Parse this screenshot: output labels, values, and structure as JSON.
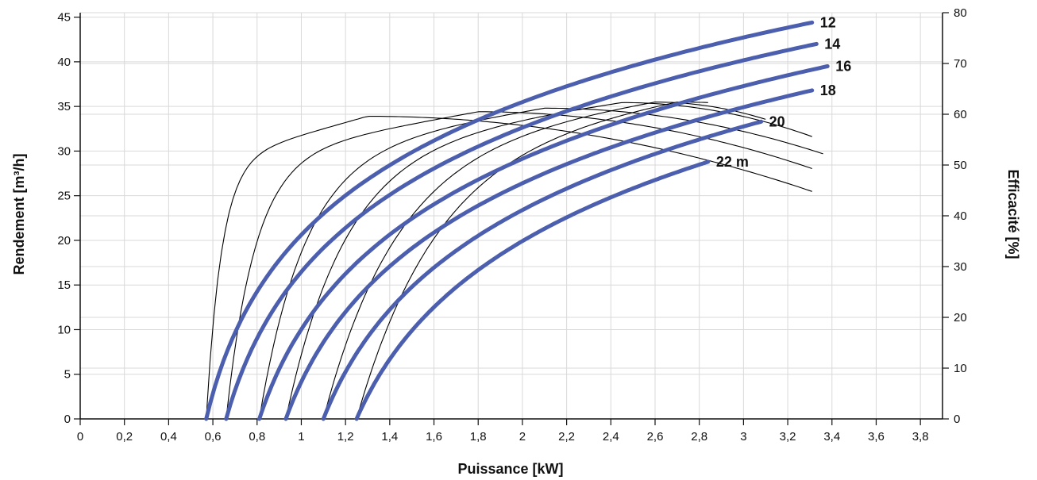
{
  "chart_data": {
    "type": "line",
    "title": "",
    "xlabel": "Puissance [kW]",
    "ylabel": "Rendement [m³/h]",
    "y2label": "Efficacité [%]",
    "xlim": [
      0,
      3.9
    ],
    "ylim": [
      0,
      45.5
    ],
    "y2lim": [
      0,
      80
    ],
    "x_ticks": [
      0,
      0.2,
      0.4,
      0.6,
      0.8,
      1,
      1.2,
      1.4,
      1.6,
      1.8,
      2,
      2.2,
      2.4,
      2.6,
      2.8,
      3,
      3.2,
      3.4,
      3.6,
      3.8
    ],
    "x_tick_labels": [
      "0",
      "0,2",
      "0,4",
      "0,6",
      "0,8",
      "1",
      "1,2",
      "1,4",
      "1,6",
      "1,8",
      "2",
      "2,2",
      "2,4",
      "2,6",
      "2,8",
      "3",
      "3,2",
      "3,4",
      "3,6",
      "3,8"
    ],
    "y_ticks": [
      0,
      5,
      10,
      15,
      20,
      25,
      30,
      35,
      40,
      45
    ],
    "y_tick_labels": [
      "0",
      "5",
      "10",
      "15",
      "20",
      "25",
      "30",
      "35",
      "40",
      "45"
    ],
    "y2_ticks": [
      0,
      10,
      20,
      30,
      40,
      50,
      60,
      70,
      80
    ],
    "y2_tick_labels": [
      "0",
      "10",
      "20",
      "30",
      "40",
      "50",
      "60",
      "70",
      "80"
    ],
    "grid": true,
    "series_yield": [
      {
        "label": "12",
        "x0": 0.57,
        "x1": 3.31,
        "y1": 44.4,
        "k": 0.42
      },
      {
        "label": "14",
        "x0": 0.66,
        "x1": 3.33,
        "y1": 42.0,
        "k": 0.5
      },
      {
        "label": "16",
        "x0": 0.81,
        "x1": 3.38,
        "y1": 39.5,
        "k": 0.6
      },
      {
        "label": "18",
        "x0": 0.93,
        "x1": 3.31,
        "y1": 36.8,
        "k": 0.65
      },
      {
        "label": "20",
        "x0": 1.1,
        "x1": 3.08,
        "y1": 33.3,
        "k": 0.7
      },
      {
        "label": "22 m",
        "x0": 1.25,
        "x1": 2.84,
        "y1": 28.8,
        "k": 0.78
      }
    ],
    "series_efficiency": [
      {
        "x0": 0.57,
        "xpeak": 1.3,
        "peak": 59.6,
        "x1": 3.31,
        "y1": 44.8,
        "rise": 0.08
      },
      {
        "x0": 0.66,
        "xpeak": 1.8,
        "peak": 60.5,
        "x1": 3.31,
        "y1": 49.3,
        "rise": 0.18
      },
      {
        "x0": 0.81,
        "xpeak": 2.1,
        "peak": 61.2,
        "x1": 3.36,
        "y1": 52.2,
        "rise": 0.3
      },
      {
        "x0": 0.93,
        "xpeak": 2.45,
        "peak": 62.3,
        "x1": 3.31,
        "y1": 55.6,
        "rise": 0.4
      },
      {
        "x0": 1.1,
        "xpeak": 2.6,
        "peak": 62.4,
        "x1": 3.1,
        "y1": 59.0,
        "rise": 0.5
      },
      {
        "x0": 1.25,
        "xpeak": 2.7,
        "peak": 62.4,
        "x1": 2.84,
        "y1": 62.3,
        "rise": 0.55
      }
    ]
  }
}
